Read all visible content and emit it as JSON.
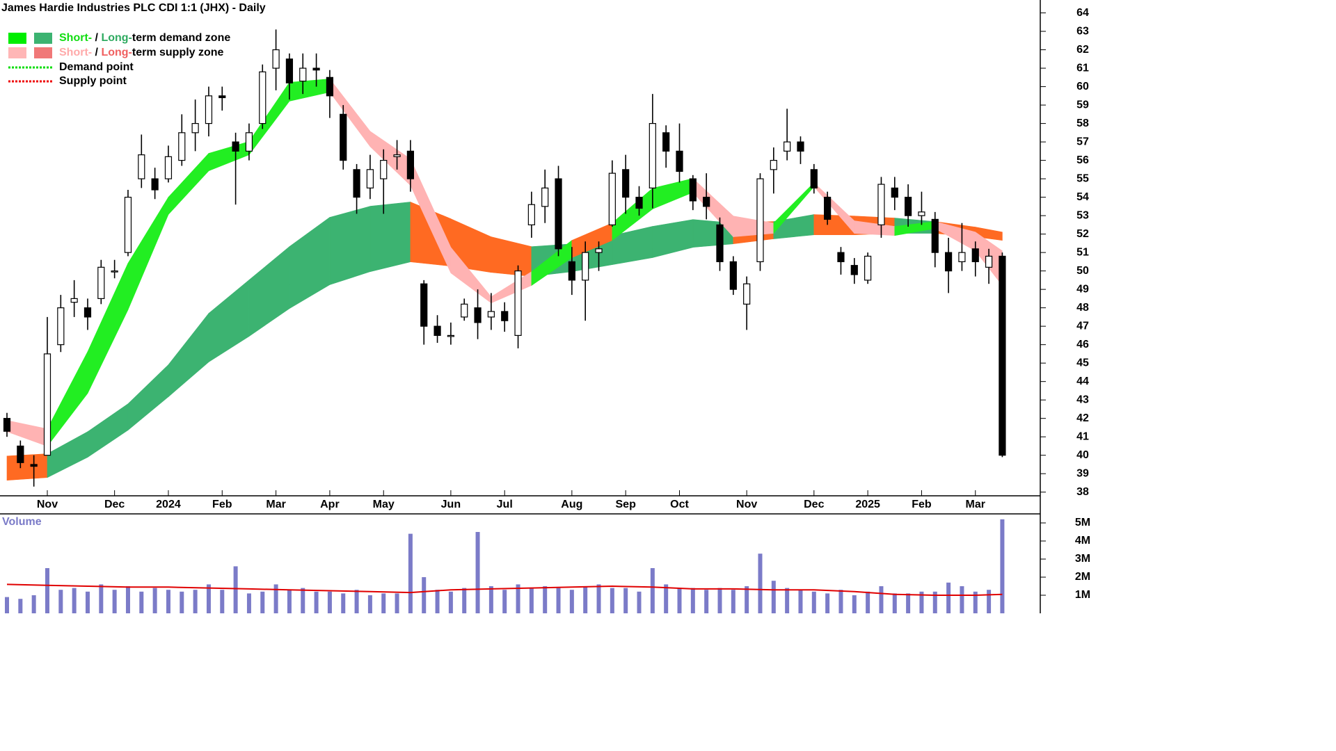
{
  "chart_data": [
    {
      "type": "candlestick",
      "title": "James Hardie Industries PLC CDI 1:1 (JHX) - Daily",
      "categories": [
        null,
        null,
        null,
        "Nov",
        null,
        null,
        null,
        null,
        "Dec",
        null,
        null,
        null,
        "2024",
        null,
        null,
        null,
        "Feb",
        null,
        null,
        null,
        "Mar",
        null,
        null,
        null,
        "Apr",
        null,
        null,
        null,
        "May",
        null,
        null,
        null,
        null,
        "Jun",
        null,
        null,
        null,
        "Jul",
        null,
        null,
        null,
        null,
        "Aug",
        null,
        null,
        null,
        "Sep",
        null,
        null,
        null,
        "Oct",
        null,
        null,
        null,
        null,
        "Nov",
        null,
        null,
        null,
        null,
        "Dec",
        null,
        null,
        null,
        "2025",
        null,
        null,
        null,
        "Feb",
        null,
        null,
        null,
        "Mar",
        null,
        null
      ],
      "open": [
        42,
        40.5,
        39.5,
        40,
        46,
        48.3,
        48,
        48.5,
        50,
        51,
        55,
        55,
        55,
        56,
        57.5,
        58,
        59.5,
        57,
        56.5,
        58,
        61,
        61.5,
        60.3,
        61,
        60.5,
        58.5,
        55.5,
        54.5,
        55,
        56.2,
        56.5,
        49.3,
        47,
        46.5,
        47.5,
        48,
        47.5,
        47.8,
        46.5,
        52.5,
        53.5,
        55,
        50.5,
        49.5,
        51,
        52.5,
        55.5,
        54,
        54.5,
        57.5,
        56.5,
        55,
        54,
        52.5,
        50.5,
        48.2,
        50.5,
        55.5,
        56.5,
        57,
        55.5,
        54,
        51,
        50.3,
        49.5,
        52.5,
        54.5,
        54,
        53,
        52.8,
        51,
        50.5,
        51.2,
        50.2,
        50.8
      ],
      "high": [
        42.3,
        40.8,
        40,
        47.5,
        48.7,
        49.5,
        48.5,
        50.6,
        50.6,
        54.4,
        57.4,
        55.6,
        56.8,
        58.5,
        59.3,
        60,
        60,
        57.5,
        58,
        61.2,
        63.1,
        61.8,
        61.8,
        61.8,
        60.9,
        59,
        55.8,
        56.3,
        56.6,
        57.1,
        57.1,
        49.5,
        47.6,
        47.2,
        48.5,
        49,
        48.8,
        48.3,
        50.3,
        54.3,
        55.5,
        55.7,
        51.3,
        51.6,
        51.6,
        56,
        56.3,
        54.6,
        59.6,
        57.9,
        58,
        55.2,
        55.3,
        52.9,
        50.8,
        49.7,
        55.3,
        56.7,
        58.8,
        57.3,
        55.8,
        54.3,
        51.3,
        50.7,
        51,
        55.1,
        55.1,
        54.7,
        54.3,
        53.2,
        51.8,
        52.6,
        51.6,
        51.2,
        51
      ],
      "low": [
        41,
        39.3,
        38.3,
        40,
        45.6,
        47.5,
        46.8,
        48.2,
        49.6,
        50.8,
        54.5,
        53.9,
        54.8,
        55.7,
        56.5,
        57.3,
        58.7,
        53.6,
        56,
        57.7,
        59.8,
        59.3,
        59.6,
        60,
        58.3,
        55.5,
        53.1,
        53.9,
        53.1,
        55.5,
        54.3,
        46,
        46.1,
        46,
        47.3,
        46.3,
        46.8,
        46.7,
        45.8,
        51.8,
        52.6,
        50.8,
        48.7,
        47.3,
        50,
        52.4,
        53.1,
        53,
        53.4,
        55.6,
        54.8,
        53.3,
        52.8,
        50,
        48.7,
        46.8,
        50,
        54.2,
        56,
        55.8,
        54.2,
        52.5,
        49.8,
        49.3,
        49.3,
        51.8,
        53.3,
        52.4,
        52.5,
        50.2,
        48.8,
        50,
        49.7,
        49.3,
        39.9
      ],
      "close": [
        41.3,
        39.6,
        39.4,
        45.5,
        48,
        48.5,
        47.5,
        50.2,
        50,
        54,
        56.3,
        54.4,
        56.2,
        57.5,
        58,
        59.5,
        59.4,
        56.5,
        57.5,
        60.8,
        62,
        60.2,
        61,
        60.9,
        59.5,
        56,
        54,
        55.5,
        56,
        56.3,
        55,
        47,
        46.5,
        46.5,
        48.2,
        47.2,
        47.8,
        47.3,
        50,
        53.6,
        54.5,
        51.2,
        49.5,
        51,
        51.2,
        55.3,
        54,
        53.4,
        58,
        56.5,
        55.4,
        53.8,
        53.5,
        50.5,
        49,
        49.3,
        55,
        56,
        57,
        56.5,
        54.5,
        52.8,
        50.5,
        49.8,
        50.8,
        54.7,
        54,
        53,
        53.2,
        51,
        50,
        51,
        50.5,
        50.8,
        40
      ],
      "ylim": [
        37.8,
        64.7
      ],
      "yticks": [
        38,
        39,
        40,
        41,
        42,
        43,
        44,
        45,
        46,
        47,
        48,
        49,
        50,
        51,
        52,
        53,
        54,
        55,
        56,
        57,
        58,
        59,
        60,
        61,
        62,
        63,
        64
      ],
      "zones": {
        "x": [
          0,
          3,
          6,
          9,
          12,
          15,
          18,
          21,
          24,
          27,
          30,
          33,
          36,
          39,
          42,
          45,
          48,
          51,
          54,
          57,
          60,
          63,
          66,
          69,
          72,
          74
        ],
        "bands": [
          {
            "lower": [
              38.64,
              38.79,
              39.89,
              41.36,
              43.17,
              45.06,
              46.45,
              47.96,
              49.25,
              49.96,
              50.49,
              50.26,
              49.92,
              49.7,
              49.96,
              50.34,
              50.72,
              51.28,
              51.47,
              51.74,
              51.96,
              51.96,
              52.04,
              52.04,
              51.85,
              51.66
            ],
            "upper": [
              39.96,
              40.08,
              41.28,
              42.79,
              44.91,
              47.7,
              49.51,
              51.32,
              52.91,
              53.51,
              53.74,
              52.83,
              51.85,
              51.32,
              51.47,
              51.92,
              52.42,
              52.79,
              52.6,
              52.68,
              53.06,
              52.98,
              52.87,
              52.68,
              52.38,
              52.11
            ],
            "segment_colors": [
              "#ff6a22",
              "#3cb371",
              "#3cb371",
              "#3cb371",
              "#3cb371",
              "#3cb371",
              "#3cb371",
              "#3cb371",
              "#3cb371",
              "#3cb371",
              "#ff6a22",
              "#ff6a22",
              "#ff6a22",
              "#3cb371",
              "#3cb371",
              "#3cb371",
              "#3cb371",
              "#3cb371",
              "#ff6a22",
              "#3cb371",
              "#ff6a22",
              "#ff6a22",
              "#3cb371",
              "#ff6a22",
              "#ff6a22"
            ]
          },
          {
            "lower": [
              41.28,
              40.49,
              43.36,
              47.89,
              53.06,
              55.43,
              56.3,
              59.21,
              59.7,
              56.75,
              54.64,
              49.89,
              48.26,
              49.21,
              50.72,
              51.66,
              53.36,
              54.26,
              51.85,
              52.04,
              54.57,
              52.04,
              51.92,
              52.3,
              51.09,
              49.21
            ],
            "upper": [
              41.89,
              41.43,
              45.62,
              50.42,
              54.0,
              56.38,
              57.02,
              60.23,
              60.42,
              57.58,
              56.08,
              51.28,
              48.6,
              49.96,
              51.66,
              52.6,
              54.49,
              55.02,
              52.98,
              52.6,
              54.79,
              52.72,
              52.42,
              52.68,
              52.11,
              51.09
            ],
            "segment_colors": [
              "#ffb3b3",
              "#22ee22",
              "#22ee22",
              "#22ee22",
              "#22ee22",
              "#22ee22",
              "#22ee22",
              "#22ee22",
              "#ffb3b3",
              "#ffb3b3",
              "#ffb3b3",
              "#ffb3b3",
              "#ffb3b3",
              "#22ee22",
              "#ff6a22",
              "#22ee22",
              "#22ee22",
              "#ffb3b3",
              "#ffb3b3",
              "#22ee22",
              "#ffb3b3",
              "#ffb3b3",
              "#22ee22",
              "#ffb3b3",
              "#ffb3b3"
            ]
          }
        ]
      },
      "legend": [
        {
          "swatches": [
            "#00ee00",
            "#3cb371"
          ],
          "parts": [
            {
              "text": "Short-",
              "color": "#11dd11"
            },
            {
              "text": " / ",
              "color": "#000000"
            },
            {
              "text": "Long-",
              "color": "#2eaa60"
            },
            {
              "text": "term demand zone",
              "color": "#000000"
            }
          ]
        },
        {
          "swatches": [
            "#ffb6b6",
            "#f07878"
          ],
          "parts": [
            {
              "text": "Short-",
              "color": "#ffaaaa"
            },
            {
              "text": " / ",
              "color": "#000000"
            },
            {
              "text": "Long-",
              "color": "#f06060"
            },
            {
              "text": "term supply zone",
              "color": "#000000"
            }
          ]
        },
        {
          "dotted": "#00dd00",
          "parts": [
            {
              "text": "Demand point",
              "color": "#000000"
            }
          ]
        },
        {
          "dotted": "#ee0000",
          "parts": [
            {
              "text": "Supply point",
              "color": "#000000"
            }
          ]
        }
      ]
    },
    {
      "type": "bar",
      "title": "Volume",
      "color": "#7b7bc8",
      "values": [
        0.9,
        0.8,
        1.0,
        2.5,
        1.3,
        1.4,
        1.2,
        1.6,
        1.3,
        1.5,
        1.2,
        1.4,
        1.3,
        1.2,
        1.3,
        1.6,
        1.3,
        2.6,
        1.1,
        1.2,
        1.6,
        1.3,
        1.4,
        1.2,
        1.2,
        1.1,
        1.3,
        1.0,
        1.1,
        1.1,
        4.4,
        2.0,
        1.3,
        1.2,
        1.4,
        4.5,
        1.5,
        1.3,
        1.6,
        1.4,
        1.5,
        1.4,
        1.3,
        1.5,
        1.6,
        1.4,
        1.4,
        1.2,
        2.5,
        1.6,
        1.4,
        1.4,
        1.3,
        1.4,
        1.3,
        1.5,
        3.3,
        1.8,
        1.4,
        1.3,
        1.2,
        1.1,
        1.3,
        1.0,
        1.2,
        1.5,
        1.1,
        1.1,
        1.2,
        1.2,
        1.7,
        1.5,
        1.2,
        1.3,
        5.2
      ],
      "average": {
        "color": "#e00000",
        "x": [
          0,
          3,
          6,
          9,
          12,
          15,
          18,
          21,
          24,
          27,
          30,
          33,
          36,
          39,
          42,
          45,
          48,
          51,
          54,
          57,
          60,
          63,
          66,
          69,
          72,
          74
        ],
        "values": [
          1.6,
          1.55,
          1.5,
          1.45,
          1.45,
          1.4,
          1.35,
          1.3,
          1.25,
          1.2,
          1.15,
          1.3,
          1.35,
          1.4,
          1.45,
          1.5,
          1.45,
          1.35,
          1.35,
          1.3,
          1.3,
          1.2,
          1.05,
          1.0,
          1.0,
          1.05
        ]
      },
      "ylim": [
        0,
        5.5
      ],
      "yticks": [
        {
          "value": 1,
          "label": "1M"
        },
        {
          "value": 2,
          "label": "2M"
        },
        {
          "value": 3,
          "label": "3M"
        },
        {
          "value": 4,
          "label": "4M"
        },
        {
          "value": 5,
          "label": "5M"
        }
      ]
    }
  ]
}
